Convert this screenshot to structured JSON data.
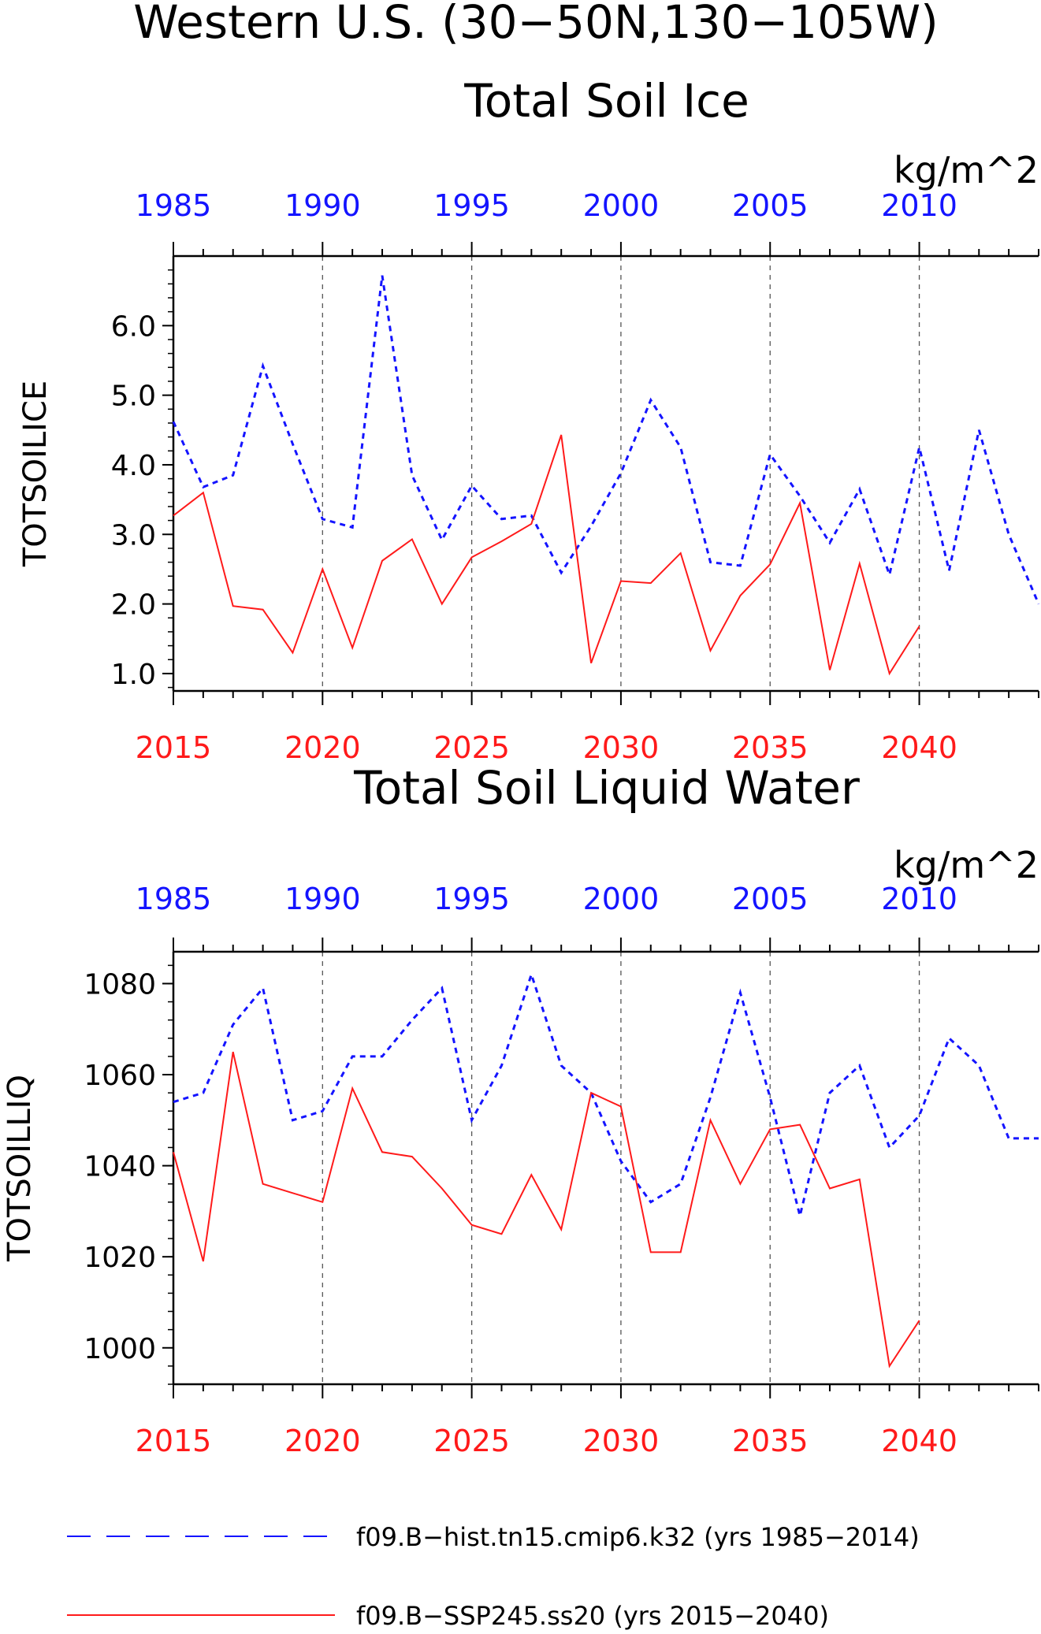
{
  "page": {
    "title": "Western U.S. (30−50N,130−105W)"
  },
  "colors": {
    "hist": "#1414ff",
    "ssp": "#ff1a1a",
    "axis": "#000000",
    "grid": "#555555"
  },
  "legend": {
    "items": [
      {
        "label": "f09.B−hist.tn15.cmip6.k32 (yrs 1985−2014)",
        "color": "#1414ff",
        "style": "dashed"
      },
      {
        "label": "f09.B−SSP245.ss20 (yrs 2015−2040)",
        "color": "#ff1a1a",
        "style": "solid"
      }
    ]
  },
  "chart_data": [
    {
      "type": "line",
      "title": "Total Soil Ice",
      "units": "kg/m^2",
      "ylabel": "TOTSOILICE",
      "ylim": [
        0.75,
        7.0
      ],
      "yticks": [
        1.0,
        2.0,
        3.0,
        4.0,
        5.0,
        6.0
      ],
      "ytick_labels": [
        "1.0",
        "2.0",
        "3.0",
        "4.0",
        "5.0",
        "6.0"
      ],
      "bottom_xlim": [
        2015,
        2044
      ],
      "bottom_xticks": [
        2015,
        2020,
        2025,
        2030,
        2035,
        2040
      ],
      "top_xticks": [
        1985,
        1990,
        1995,
        2000,
        2005,
        2010
      ],
      "grid": "vertical-dashed",
      "series": [
        {
          "name": "f09.B−hist.tn15.cmip6.k32",
          "x": [
            1985,
            1986,
            1987,
            1988,
            1989,
            1990,
            1991,
            1992,
            1993,
            1994,
            1995,
            1996,
            1997,
            1998,
            1999,
            2000,
            2001,
            2002,
            2003,
            2004,
            2005,
            2006,
            2007,
            2008,
            2009,
            2010,
            2011,
            2012,
            2013,
            2014
          ],
          "values": [
            4.62,
            3.68,
            3.85,
            5.42,
            4.3,
            3.22,
            3.1,
            6.72,
            3.85,
            2.92,
            3.7,
            3.22,
            3.27,
            2.45,
            3.12,
            3.88,
            4.93,
            4.25,
            2.6,
            2.55,
            4.15,
            3.55,
            2.88,
            3.65,
            2.42,
            4.25,
            2.48,
            4.5,
            3.0,
            2.0
          ]
        },
        {
          "name": "f09.B−SSP245.ss20",
          "x": [
            2015,
            2016,
            2017,
            2018,
            2019,
            2020,
            2021,
            2022,
            2023,
            2024,
            2025,
            2026,
            2027,
            2028,
            2029,
            2030,
            2031,
            2032,
            2033,
            2034,
            2035,
            2036,
            2037,
            2038,
            2039,
            2040
          ],
          "values": [
            3.27,
            3.6,
            1.97,
            1.92,
            1.3,
            2.5,
            1.37,
            2.62,
            2.93,
            2.0,
            2.67,
            2.9,
            3.15,
            4.43,
            1.15,
            2.33,
            2.3,
            2.73,
            1.33,
            2.12,
            2.57,
            3.45,
            1.05,
            2.58,
            1.0,
            1.68
          ]
        }
      ]
    },
    {
      "type": "line",
      "title": "Total Soil Liquid Water",
      "units": "kg/m^2",
      "ylabel": "TOTSOILLIQ",
      "ylim": [
        992,
        1087
      ],
      "yticks": [
        1000,
        1020,
        1040,
        1060,
        1080
      ],
      "ytick_labels": [
        "1000",
        "1020",
        "1040",
        "1060",
        "1080"
      ],
      "bottom_xlim": [
        2015,
        2044
      ],
      "bottom_xticks": [
        2015,
        2020,
        2025,
        2030,
        2035,
        2040
      ],
      "top_xticks": [
        1985,
        1990,
        1995,
        2000,
        2005,
        2010
      ],
      "grid": "vertical-dashed",
      "series": [
        {
          "name": "f09.B−hist.tn15.cmip6.k32",
          "x": [
            1985,
            1986,
            1987,
            1988,
            1989,
            1990,
            1991,
            1992,
            1993,
            1994,
            1995,
            1996,
            1997,
            1998,
            1999,
            2000,
            2001,
            2002,
            2003,
            2004,
            2005,
            2006,
            2007,
            2008,
            2009,
            2010,
            2011,
            2012,
            2013,
            2014
          ],
          "values": [
            1054,
            1056,
            1071,
            1079,
            1050,
            1052,
            1064,
            1064,
            1072,
            1079,
            1050,
            1062,
            1082,
            1062,
            1056,
            1041,
            1032,
            1036,
            1055,
            1078,
            1055,
            1029,
            1056,
            1062,
            1044,
            1051,
            1068,
            1062,
            1046,
            1046
          ]
        },
        {
          "name": "f09.B−SSP245.ss20",
          "x": [
            2015,
            2016,
            2017,
            2018,
            2019,
            2020,
            2021,
            2022,
            2023,
            2024,
            2025,
            2026,
            2027,
            2028,
            2029,
            2030,
            2031,
            2032,
            2033,
            2034,
            2035,
            2036,
            2037,
            2038,
            2039,
            2040
          ],
          "values": [
            1043,
            1019,
            1065,
            1036,
            1034,
            1032,
            1057,
            1043,
            1042,
            1035,
            1027,
            1025,
            1038,
            1026,
            1056,
            1053,
            1021,
            1021,
            1050,
            1036,
            1048,
            1049,
            1035,
            1037,
            996,
            1006
          ]
        }
      ]
    }
  ]
}
